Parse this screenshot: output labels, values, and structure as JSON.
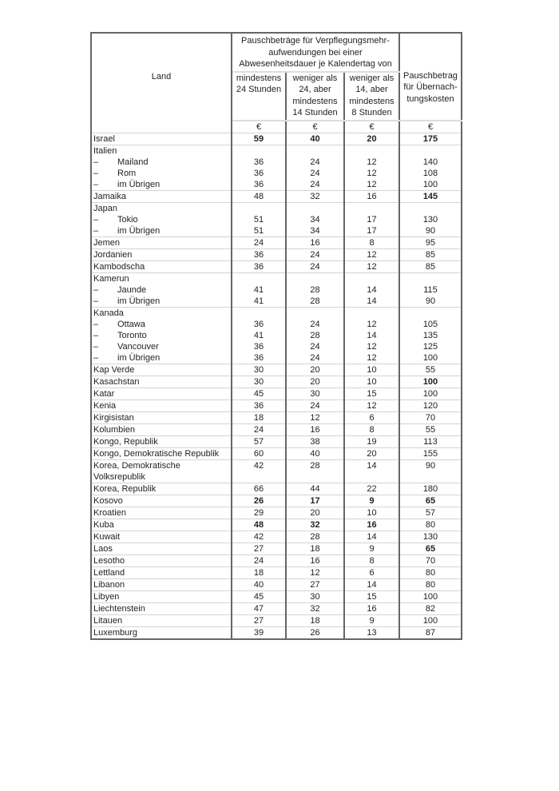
{
  "header": {
    "land": "Land",
    "group": "Pauschbeträge für Verpflegungsmehr-aufwendungen bei einer Abwesenheitsdauer je Kalendertag von",
    "col1": "mindestens 24 Stunden",
    "col2": "weniger als 24, aber mindestens 14 Stunden",
    "col3": "weniger als 14, aber mindestens 8 Stunden",
    "col4": "Pauschbetrag für Übernach-tungskosten",
    "currency": "€"
  },
  "sub_prefix": "–",
  "rows": [
    {
      "name": "Israel",
      "values": [
        "59",
        "40",
        "20",
        "175"
      ],
      "bold": [
        true,
        true,
        true,
        true
      ]
    },
    {
      "name": "Italien",
      "subs": [
        {
          "name": "Mailand",
          "values": [
            "36",
            "24",
            "12",
            "140"
          ]
        },
        {
          "name": "Rom",
          "values": [
            "36",
            "24",
            "12",
            "108"
          ]
        },
        {
          "name": "im Übrigen",
          "values": [
            "36",
            "24",
            "12",
            "100"
          ]
        }
      ]
    },
    {
      "name": "Jamaika",
      "values": [
        "48",
        "32",
        "16",
        "145"
      ],
      "bold": [
        false,
        false,
        false,
        true
      ]
    },
    {
      "name": "Japan",
      "subs": [
        {
          "name": "Tokio",
          "values": [
            "51",
            "34",
            "17",
            "130"
          ]
        },
        {
          "name": "im Übrigen",
          "values": [
            "51",
            "34",
            "17",
            "90"
          ]
        }
      ]
    },
    {
      "name": "Jemen",
      "values": [
        "24",
        "16",
        "8",
        "95"
      ]
    },
    {
      "name": "Jordanien",
      "values": [
        "36",
        "24",
        "12",
        "85"
      ]
    },
    {
      "name": "Kambodscha",
      "values": [
        "36",
        "24",
        "12",
        "85"
      ]
    },
    {
      "name": "Kamerun",
      "subs": [
        {
          "name": "Jaunde",
          "values": [
            "41",
            "28",
            "14",
            "115"
          ]
        },
        {
          "name": "im Übrigen",
          "values": [
            "41",
            "28",
            "14",
            "90"
          ]
        }
      ]
    },
    {
      "name": "Kanada",
      "subs": [
        {
          "name": "Ottawa",
          "values": [
            "36",
            "24",
            "12",
            "105"
          ]
        },
        {
          "name": "Toronto",
          "values": [
            "41",
            "28",
            "14",
            "135"
          ]
        },
        {
          "name": "Vancouver",
          "values": [
            "36",
            "24",
            "12",
            "125"
          ]
        },
        {
          "name": "im Übrigen",
          "values": [
            "36",
            "24",
            "12",
            "100"
          ]
        }
      ]
    },
    {
      "name": "Kap Verde",
      "values": [
        "30",
        "20",
        "10",
        "55"
      ]
    },
    {
      "name": "Kasachstan",
      "values": [
        "30",
        "20",
        "10",
        "100"
      ],
      "bold": [
        false,
        false,
        false,
        true
      ]
    },
    {
      "name": "Katar",
      "values": [
        "45",
        "30",
        "15",
        "100"
      ]
    },
    {
      "name": "Kenia",
      "values": [
        "36",
        "24",
        "12",
        "120"
      ]
    },
    {
      "name": "Kirgisistan",
      "values": [
        "18",
        "12",
        "6",
        "70"
      ]
    },
    {
      "name": "Kolumbien",
      "values": [
        "24",
        "16",
        "8",
        "55"
      ]
    },
    {
      "name": "Kongo, Republik",
      "values": [
        "57",
        "38",
        "19",
        "113"
      ]
    },
    {
      "name": "Kongo, Demokratische Republik",
      "values": [
        "60",
        "40",
        "20",
        "155"
      ]
    },
    {
      "name": "Korea, Demokratische Volksrepublik",
      "values": [
        "42",
        "28",
        "14",
        "90"
      ]
    },
    {
      "name": "Korea, Republik",
      "values": [
        "66",
        "44",
        "22",
        "180"
      ]
    },
    {
      "name": "Kosovo",
      "values": [
        "26",
        "17",
        "9",
        "65"
      ],
      "bold": [
        true,
        true,
        true,
        true
      ]
    },
    {
      "name": "Kroatien",
      "values": [
        "29",
        "20",
        "10",
        "57"
      ]
    },
    {
      "name": "Kuba",
      "values": [
        "48",
        "32",
        "16",
        "80"
      ],
      "bold": [
        true,
        true,
        true,
        false
      ]
    },
    {
      "name": "Kuwait",
      "values": [
        "42",
        "28",
        "14",
        "130"
      ]
    },
    {
      "name": "Laos",
      "values": [
        "27",
        "18",
        "9",
        "65"
      ],
      "bold": [
        false,
        false,
        false,
        true
      ]
    },
    {
      "name": "Lesotho",
      "values": [
        "24",
        "16",
        "8",
        "70"
      ]
    },
    {
      "name": "Lettland",
      "values": [
        "18",
        "12",
        "6",
        "80"
      ]
    },
    {
      "name": "Libanon",
      "values": [
        "40",
        "27",
        "14",
        "80"
      ]
    },
    {
      "name": "Libyen",
      "values": [
        "45",
        "30",
        "15",
        "100"
      ]
    },
    {
      "name": "Liechtenstein",
      "values": [
        "47",
        "32",
        "16",
        "82"
      ]
    },
    {
      "name": "Litauen",
      "values": [
        "27",
        "18",
        "9",
        "100"
      ]
    },
    {
      "name": "Luxemburg",
      "values": [
        "39",
        "26",
        "13",
        "87"
      ]
    }
  ]
}
